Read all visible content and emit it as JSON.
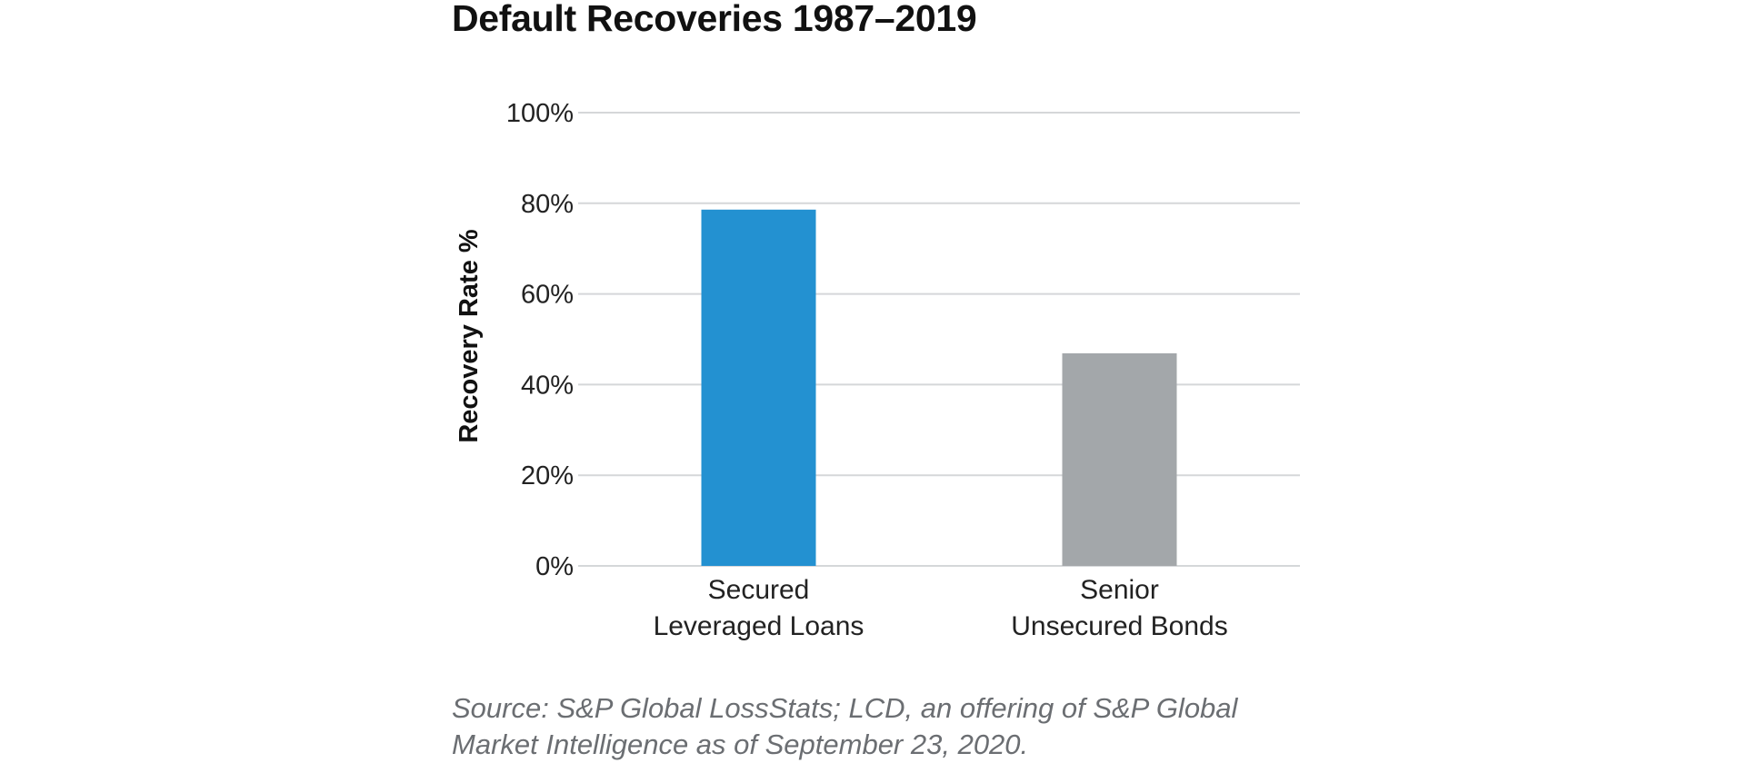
{
  "chart_data": {
    "type": "bar",
    "title": "Default Recoveries 1987–2019",
    "xlabel": "",
    "ylabel": "Recovery Rate %",
    "categories": [
      [
        "Secured",
        "Leveraged Loans"
      ],
      [
        "Senior",
        "Unsecured Bonds"
      ]
    ],
    "values": [
      78.6,
      46.9
    ],
    "colors": [
      "#2391d1",
      "#a3a7aa"
    ],
    "ylim": [
      0,
      100
    ],
    "yticks": [
      0,
      20,
      40,
      60,
      80,
      100
    ],
    "ytick_labels": [
      "0%",
      "20%",
      "40%",
      "60%",
      "80%",
      "100%"
    ],
    "grid": true,
    "gridline_color": "#d5d7d9",
    "legend": "none",
    "source": "Source: S&P Global LossStats; LCD, an offering of S&P Global Market Intelligence as of September 23, 2020."
  }
}
